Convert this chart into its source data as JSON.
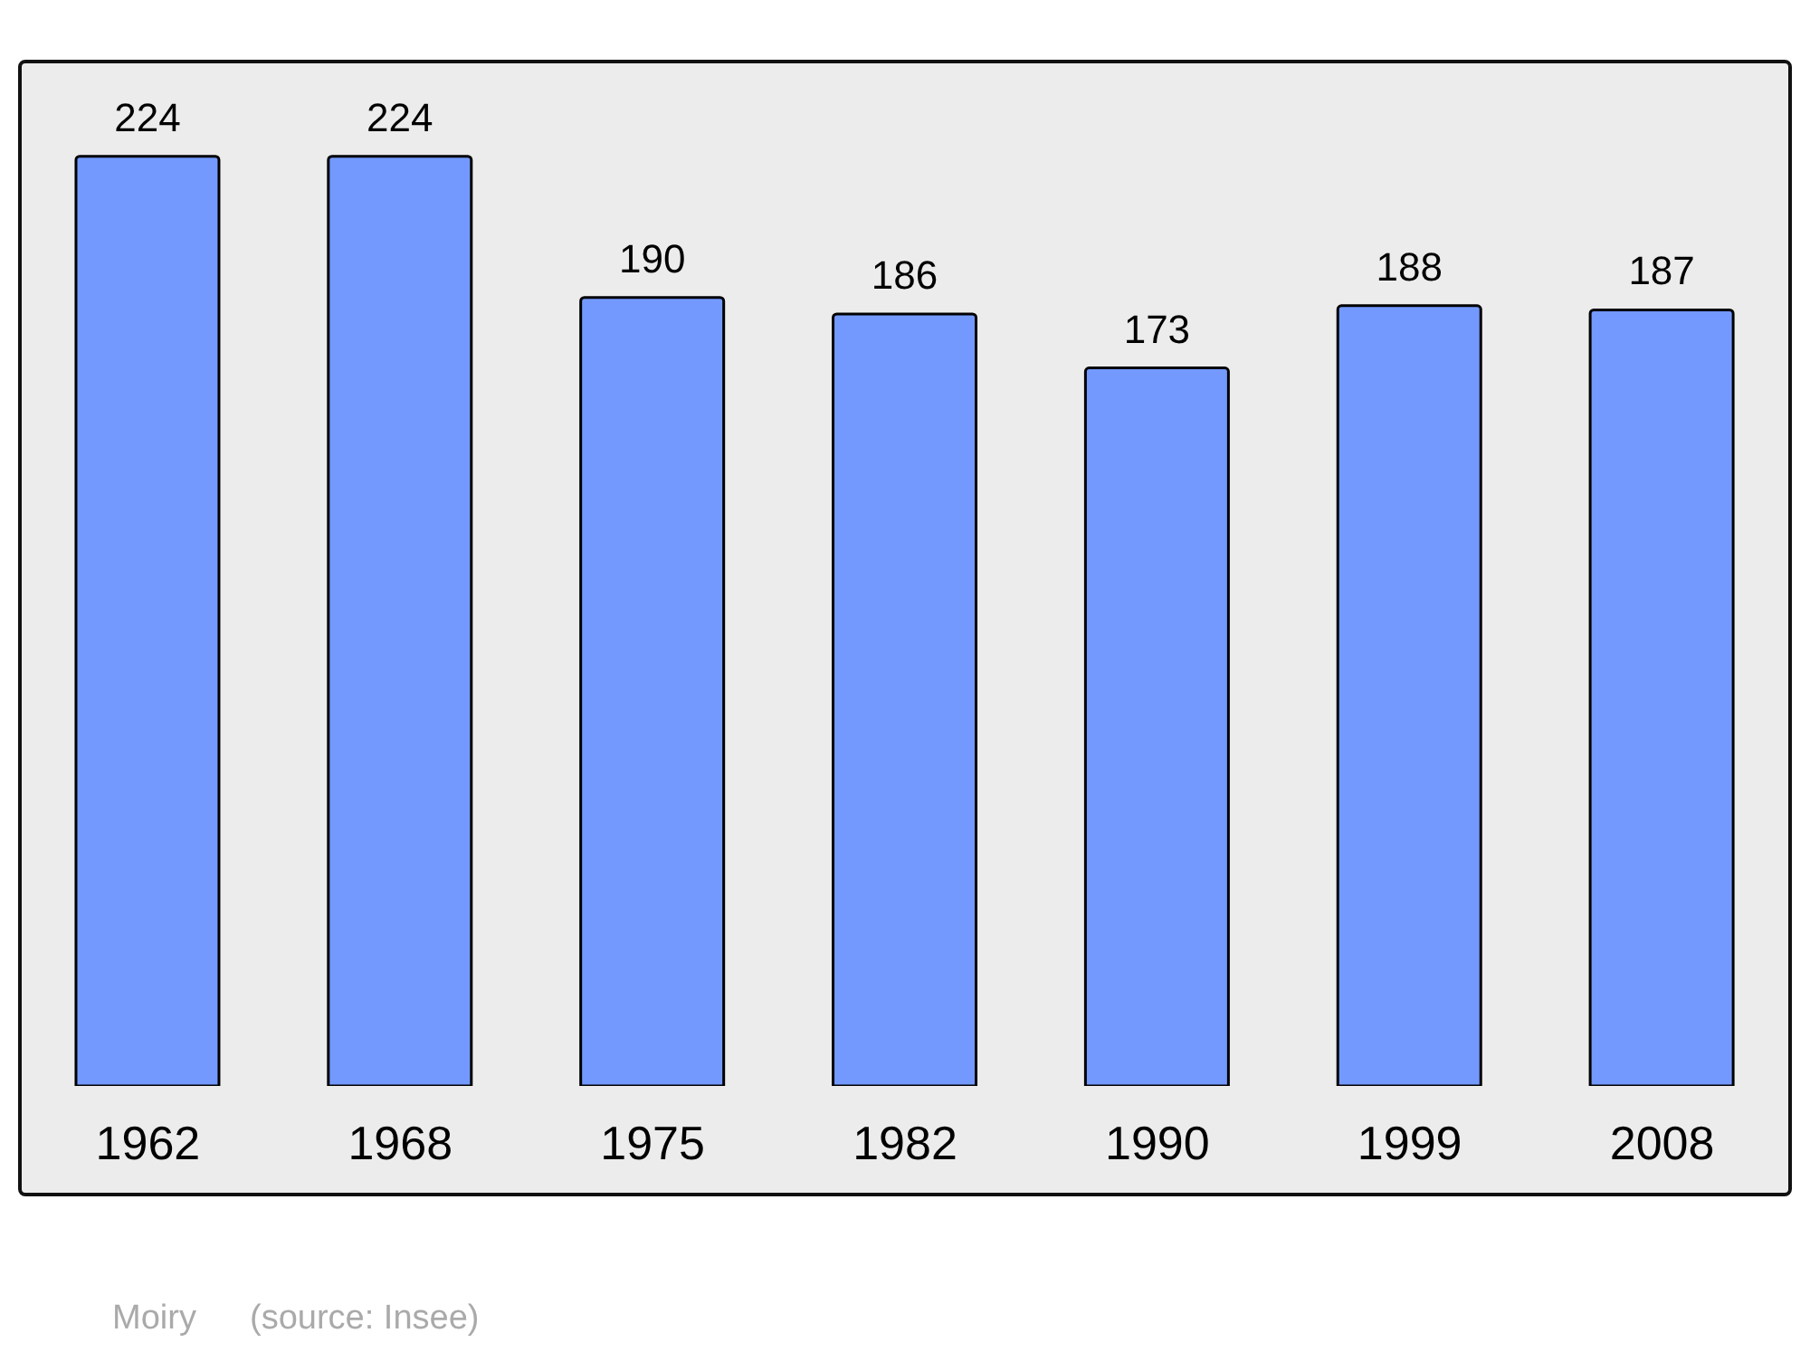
{
  "chart_data": {
    "type": "bar",
    "categories": [
      "1962",
      "1968",
      "1975",
      "1982",
      "1990",
      "1999",
      "2008"
    ],
    "values": [
      224,
      224,
      190,
      186,
      173,
      188,
      187
    ],
    "color": "#7399ff",
    "data_labels": true,
    "tick_labels": "x",
    "annotations": [
      "Moiry",
      "(source: Insee)"
    ]
  }
}
